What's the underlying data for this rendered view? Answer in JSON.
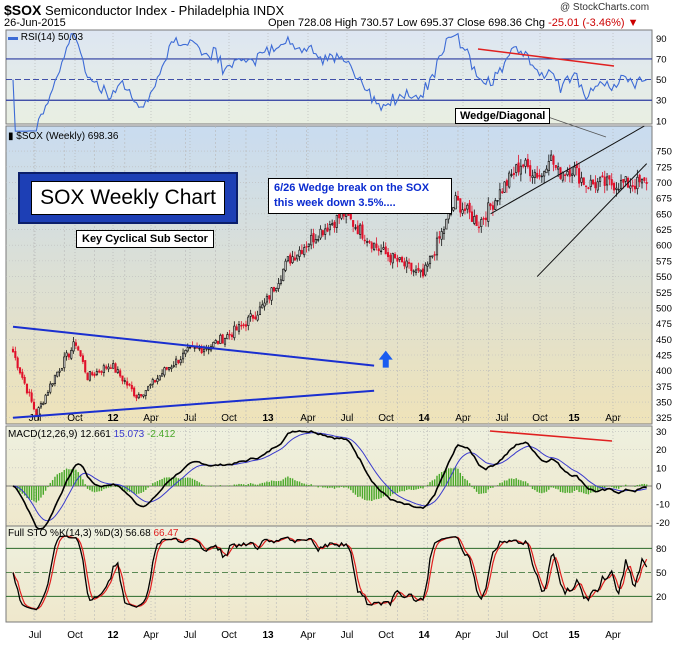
{
  "header": {
    "symbol": "$SOX",
    "name": "Semiconductor Index - Philadelphia  INDX",
    "date": "26-Jun-2015",
    "ohlc_text": "Open 728.08   High 730.57   Low 695.37   Close 698.36   Chg",
    "change_text": "-25.01 (-3.46%)",
    "copyright": "@ StockCharts.com"
  },
  "annotations": {
    "title": "SOX Weekly Chart",
    "subtitle": "Key Cyclical Sub Sector",
    "note_line1": "6/26  Wedge break on the SOX",
    "note_line2": "this week down 3.5%....",
    "wedge_label": "Wedge/Diagonal"
  },
  "colors": {
    "rsi_line": "#3d6bd6",
    "price_up": "#111111",
    "price_down": "#e0102a",
    "trendline": "#1a2fd0",
    "arrow": "#1a5cf0",
    "macd_line": "#000000",
    "signal_line": "#3a3acd",
    "histogram": "#4aa82a",
    "divergence": "#e02020",
    "sto_k": "#000000",
    "sto_d": "#e02020"
  },
  "chart_data": [
    {
      "type": "line",
      "panel": "RSI",
      "label": "RSI(14) 50.03",
      "label_name": "RSI(14)",
      "label_value": "50.03",
      "last_value": 50.03,
      "yticks": [
        90,
        70,
        50,
        30,
        10
      ],
      "ylim": [
        10,
        90
      ],
      "overbought": 70,
      "oversold": 30
    },
    {
      "type": "candlestick",
      "panel": "price",
      "label": "$SOX (Weekly) 698.36",
      "last_value": 698.36,
      "yticks": [
        325,
        350,
        375,
        400,
        425,
        450,
        475,
        500,
        525,
        550,
        575,
        600,
        625,
        650,
        675,
        700,
        725,
        750
      ],
      "ylim": [
        315,
        790
      ],
      "xticks": [
        "Jul",
        "Oct",
        "12",
        "Apr",
        "Jul",
        "Oct",
        "13",
        "Apr",
        "Jul",
        "Oct",
        "14",
        "Apr",
        "Jul",
        "Oct",
        "15",
        "Apr"
      ],
      "period": "Weekly",
      "x_range": [
        "2011-05",
        "2015-06-26"
      ],
      "path_weeks": [
        0,
        10,
        18,
        27,
        32,
        42,
        53,
        58,
        65,
        75,
        85,
        98,
        108,
        118,
        131,
        142,
        158,
        176,
        190,
        200,
        210,
        218,
        227,
        230,
        234,
        240,
        246
      ],
      "path_close": [
        430,
        330,
        392,
        445,
        390,
        410,
        360,
        372,
        400,
        430,
        440,
        470,
        505,
        575,
        620,
        650,
        590,
        550,
        670,
        635,
        690,
        730,
        710,
        745,
        715,
        723,
        698
      ],
      "trendlines": [
        {
          "name": "triangle upper",
          "from_week": 0,
          "from_value": 470,
          "to_week": 155,
          "to_value": 408
        },
        {
          "name": "triangle lower",
          "from_week": 0,
          "from_value": 325,
          "to_week": 155,
          "to_value": 368
        },
        {
          "name": "wedge upper",
          "from_week": 205,
          "from_value": 650,
          "to_week": 271,
          "to_value": 790
        },
        {
          "name": "wedge lower",
          "from_week": 225,
          "from_value": 550,
          "to_week": 272,
          "to_value": 730
        }
      ]
    },
    {
      "type": "line",
      "panel": "MACD",
      "label_name": "MACD(12,26,9)",
      "macd": 12.661,
      "signal": 15.073,
      "histogram": -2.412,
      "yticks": [
        30,
        20,
        10,
        0,
        -10,
        -20
      ],
      "ylim": [
        -22,
        33
      ]
    },
    {
      "type": "line",
      "panel": "Full Stochastic",
      "label_name": "Full STO %K(14,3) %D(3)",
      "k": 56.68,
      "d": 66.47,
      "yticks": [
        80,
        50,
        20
      ],
      "ylim": [
        0,
        100
      ]
    }
  ]
}
